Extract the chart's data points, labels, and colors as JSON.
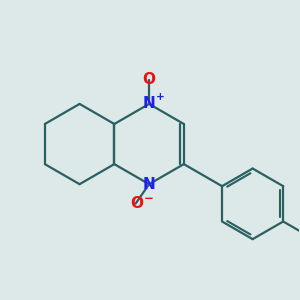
{
  "background_color": "#dde8e8",
  "bond_color": "#2a6060",
  "N_color": "#2020ee",
  "O_color": "#ee1111",
  "figsize": [
    3.0,
    3.0
  ],
  "dpi": 100,
  "xlim": [
    0,
    10
  ],
  "ylim": [
    0,
    10
  ]
}
